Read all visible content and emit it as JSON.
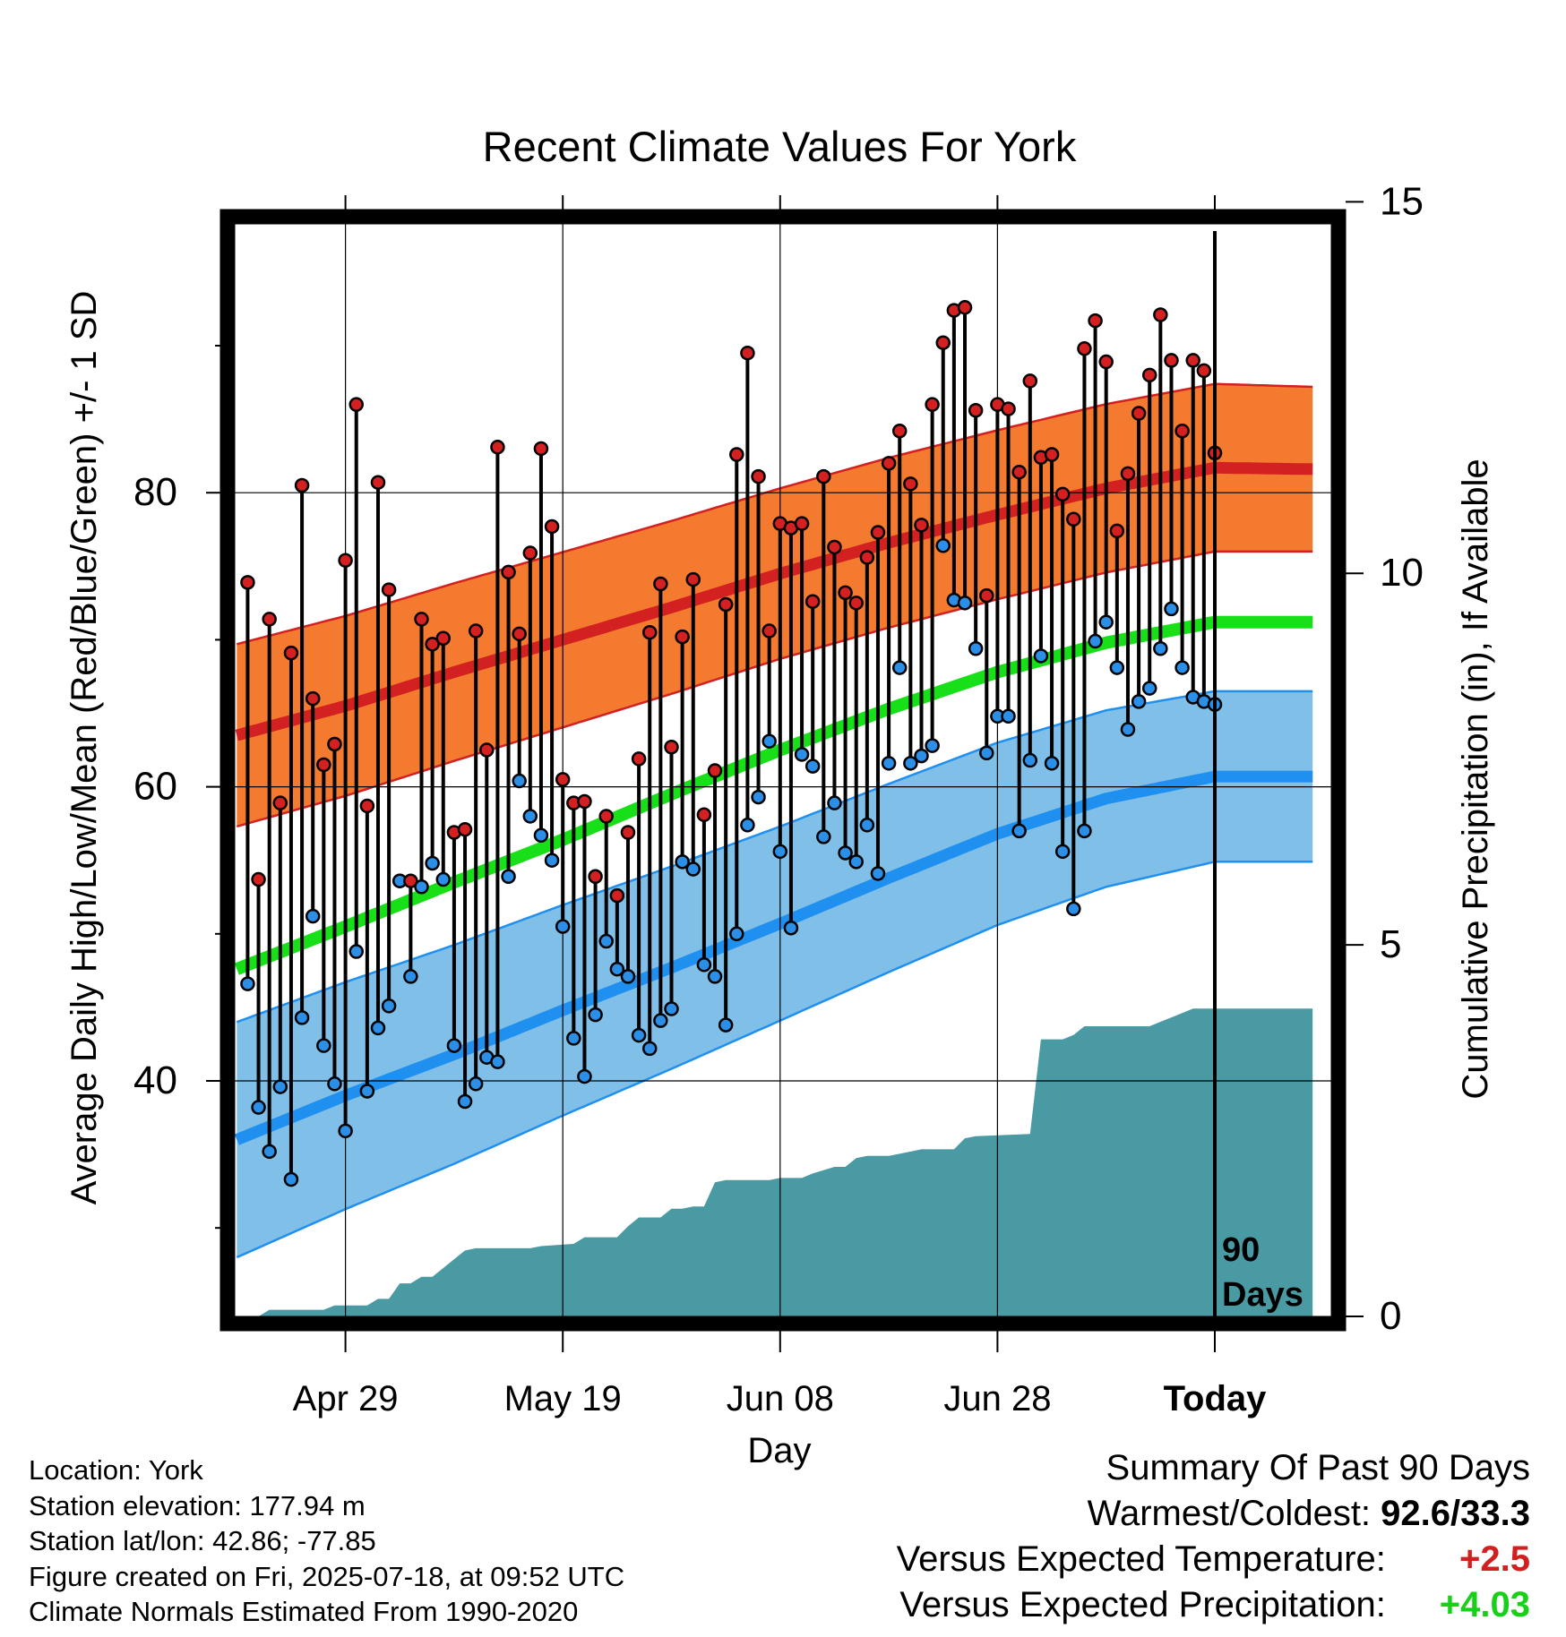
{
  "chart_data": {
    "type": "line",
    "title": "Recent Climate Values For York",
    "xlabel": "Day",
    "ylabel_left": "Average Daily High/Low/Mean (Red/Blue/Green) +/- 1 SD",
    "ylabel_right": "Cumulative Precipitation (in), If Available",
    "x_ticks": [
      "Apr 29",
      "May 19",
      "Jun 08",
      "Jun 28",
      "Today"
    ],
    "y_ticks_left": [
      "40",
      "60",
      "80"
    ],
    "y_ticks_right": [
      "0",
      "5",
      "10",
      "15"
    ],
    "ylim_left": [
      23,
      98
    ],
    "ylim_right": [
      0,
      50
    ],
    "xlim_days": [
      -90,
      9
    ],
    "today_marker_label": [
      "90",
      "Days"
    ],
    "grid": true,
    "series": [
      {
        "name": "Normal High (+/- 1 SD)",
        "color": "#d32020",
        "band_color": "#f47a30",
        "points": [
          [
            -90,
            63.5
          ],
          [
            -80,
            65.5
          ],
          [
            -70,
            67.8
          ],
          [
            -60,
            70.0
          ],
          [
            -50,
            72.2
          ],
          [
            -40,
            74.5
          ],
          [
            -30,
            76.6
          ],
          [
            -20,
            78.5
          ],
          [
            -10,
            80.3
          ],
          [
            0,
            81.7
          ],
          [
            9,
            81.6
          ]
        ],
        "sd": [
          [
            -90,
            6.2
          ],
          [
            -40,
            5.8
          ],
          [
            0,
            5.7
          ],
          [
            9,
            5.6
          ]
        ]
      },
      {
        "name": "Normal Mean",
        "color": "#18e018",
        "points": [
          [
            -90,
            47.6
          ],
          [
            -80,
            50.5
          ],
          [
            -70,
            53.5
          ],
          [
            -60,
            56.4
          ],
          [
            -50,
            59.5
          ],
          [
            -40,
            62.5
          ],
          [
            -30,
            65.3
          ],
          [
            -20,
            67.8
          ],
          [
            -10,
            69.8
          ],
          [
            0,
            71.2
          ],
          [
            9,
            71.2
          ]
        ]
      },
      {
        "name": "Normal Low (+/- 1 SD)",
        "color": "#2090f0",
        "band_color": "#80c0e8",
        "points": [
          [
            -90,
            36.0
          ],
          [
            -80,
            39.0
          ],
          [
            -70,
            41.8
          ],
          [
            -60,
            44.8
          ],
          [
            -50,
            47.7
          ],
          [
            -40,
            50.7
          ],
          [
            -30,
            53.8
          ],
          [
            -20,
            56.8
          ],
          [
            -10,
            59.2
          ],
          [
            0,
            60.7
          ],
          [
            9,
            60.7
          ]
        ],
        "sd": [
          [
            -90,
            8.0
          ],
          [
            -40,
            6.6
          ],
          [
            0,
            5.8
          ],
          [
            9,
            5.8
          ]
        ]
      }
    ],
    "daily_high": [
      73.9,
      53.7,
      71.4,
      58.9,
      69.1,
      80.5,
      66.0,
      61.5,
      62.9,
      75.4,
      86.0,
      58.7,
      80.7,
      73.4,
      53.6,
      53.6,
      71.4,
      69.7,
      70.1,
      56.9,
      57.1,
      70.6,
      62.5,
      83.1,
      74.6,
      70.4,
      75.9,
      83.0,
      77.7,
      60.5,
      58.9,
      59.0,
      53.9,
      58.0,
      52.6,
      56.9,
      61.9,
      70.5,
      73.8,
      62.7,
      70.2,
      74.1,
      58.1,
      61.1,
      72.4,
      82.6,
      89.5,
      81.1,
      70.6,
      77.9,
      77.6,
      77.9,
      72.6,
      81.1,
      76.3,
      73.2,
      72.5,
      75.6,
      77.3,
      82.0,
      84.2,
      80.6,
      77.8,
      86.0,
      90.2,
      92.4,
      92.6,
      85.6,
      73.0,
      86.0,
      85.7,
      81.4,
      87.6,
      82.4,
      82.6,
      79.9,
      78.2,
      89.8,
      91.7,
      88.9,
      77.4,
      81.3,
      85.4,
      88.0,
      92.1,
      89.0,
      84.2,
      89.0,
      88.3,
      82.7
    ],
    "daily_low": [
      46.6,
      38.2,
      35.2,
      39.6,
      33.3,
      44.3,
      51.2,
      42.4,
      39.8,
      36.6,
      48.8,
      39.3,
      43.6,
      45.1,
      53.6,
      47.1,
      53.2,
      54.8,
      53.7,
      42.4,
      38.6,
      39.8,
      41.6,
      41.3,
      53.9,
      60.4,
      58.0,
      56.7,
      55.0,
      50.5,
      42.9,
      40.3,
      44.5,
      49.5,
      47.6,
      47.1,
      43.1,
      42.2,
      44.1,
      44.9,
      54.9,
      54.4,
      47.9,
      47.1,
      43.8,
      50.0,
      57.4,
      59.3,
      63.1,
      55.6,
      50.4,
      62.2,
      61.4,
      56.6,
      58.9,
      55.5,
      54.9,
      57.4,
      54.1,
      61.6,
      68.1,
      61.6,
      62.1,
      62.8,
      76.4,
      72.7,
      72.5,
      69.4,
      62.3,
      64.8,
      64.8,
      57.0,
      61.8,
      68.9,
      61.6,
      55.6,
      51.7,
      57.0,
      69.9,
      71.2,
      68.1,
      63.9,
      65.8,
      66.7,
      69.4,
      72.1,
      68.1,
      66.1,
      65.8,
      65.6
    ],
    "cumulative_precip": [
      [
        -88,
        0.0
      ],
      [
        -87,
        0.3
      ],
      [
        -82,
        0.3
      ],
      [
        -81,
        0.5
      ],
      [
        -78,
        0.5
      ],
      [
        -77,
        0.8
      ],
      [
        -76,
        0.8
      ],
      [
        -75,
        1.5
      ],
      [
        -74,
        1.5
      ],
      [
        -73,
        1.8
      ],
      [
        -72,
        1.8
      ],
      [
        -71,
        2.2
      ],
      [
        -70,
        2.6
      ],
      [
        -69,
        3.0
      ],
      [
        -68,
        3.1
      ],
      [
        -63,
        3.1
      ],
      [
        -62,
        3.2
      ],
      [
        -59,
        3.3
      ],
      [
        -58,
        3.6
      ],
      [
        -55,
        3.6
      ],
      [
        -54,
        4.1
      ],
      [
        -53,
        4.5
      ],
      [
        -51,
        4.5
      ],
      [
        -50,
        4.9
      ],
      [
        -49,
        4.9
      ],
      [
        -48,
        5.0
      ],
      [
        -47,
        5.0
      ],
      [
        -46,
        6.1
      ],
      [
        -45,
        6.2
      ],
      [
        -41,
        6.2
      ],
      [
        -40,
        6.3
      ],
      [
        -38,
        6.3
      ],
      [
        -37,
        6.5
      ],
      [
        -35,
        6.8
      ],
      [
        -34,
        6.8
      ],
      [
        -33,
        7.2
      ],
      [
        -32,
        7.3
      ],
      [
        -30,
        7.3
      ],
      [
        -29,
        7.4
      ],
      [
        -27,
        7.6
      ],
      [
        -24,
        7.6
      ],
      [
        -23,
        8.1
      ],
      [
        -22,
        8.2
      ],
      [
        -17,
        8.3
      ],
      [
        -16,
        12.6
      ],
      [
        -14,
        12.6
      ],
      [
        -13,
        12.8
      ],
      [
        -12,
        13.2
      ],
      [
        -11,
        13.2
      ],
      [
        -10,
        13.2
      ],
      [
        -6,
        13.2
      ],
      [
        -5,
        13.4
      ],
      [
        -3,
        13.8
      ],
      [
        -2,
        14.0
      ],
      [
        9,
        14.0
      ]
    ]
  },
  "footer": {
    "location": "Location: York",
    "elevation": "Station elevation: 177.94 m",
    "latlon": "Station lat/lon: 42.86; -77.85",
    "created": "Figure created on Fri, 2025-07-18, at 09:52 UTC",
    "normals": "Climate Normals Estimated From 1990-2020"
  },
  "summary": {
    "title": "Summary Of Past 90 Days",
    "warmest_coldest_label": "Warmest/Coldest:",
    "warmest_coldest_value": "92.6/33.3",
    "temp_label": "Versus Expected Temperature:",
    "temp_value": "+2.5",
    "temp_color": "#d02020",
    "precip_label": "Versus Expected Precipitation:",
    "precip_value": "+4.03",
    "precip_color": "#18d018"
  }
}
